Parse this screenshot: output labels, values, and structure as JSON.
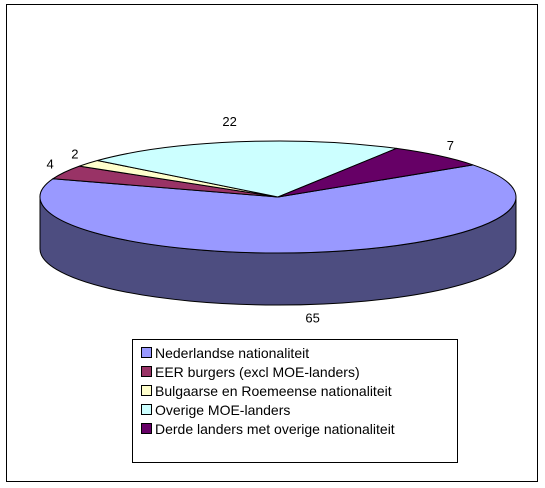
{
  "chart_data": {
    "type": "pie",
    "three_d": true,
    "legend_position": "bottom",
    "labels": [
      "Nederlandse nationaliteit",
      "EER burgers (excl MOE-landers)",
      "Bulgaarse en Roemeense nationaliteit",
      "Overige MOE-landers",
      "Derde landers met overige nationaliteit"
    ],
    "values": [
      65,
      4,
      2,
      22,
      7
    ],
    "colors": [
      "#9999ff",
      "#993366",
      "#ffffcc",
      "#ccffff",
      "#660066"
    ]
  }
}
